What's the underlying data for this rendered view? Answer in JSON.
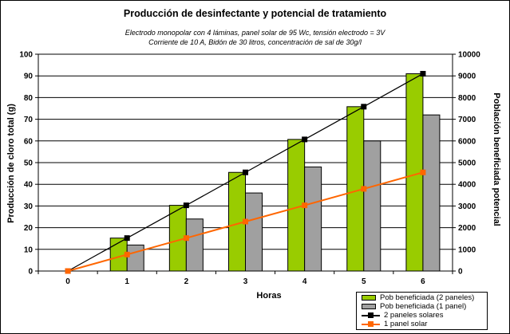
{
  "chart_data": {
    "type": "combo-bar-line",
    "title": "Producción de desinfectante y potencial de tratamiento",
    "subtitle_line1": "Electrodo monopolar con 4 láminas, panel solar de 95 Wc, tensión electrodo = 3V",
    "subtitle_line2": "Corriente de 10 A, Bidón de 30 litros, concentración de sal de 30g/l",
    "x_axis": {
      "label": "Horas",
      "categories": [
        "0",
        "1",
        "2",
        "3",
        "4",
        "5",
        "6"
      ]
    },
    "left_axis": {
      "label": "Producción de cloro total (g)",
      "min": 0,
      "max": 100,
      "step": 10
    },
    "right_axis": {
      "label": "Población beneficiada potencial",
      "min": 0,
      "max": 10000,
      "step": 1000
    },
    "grid": "horizontal",
    "legend_position": "bottom-right",
    "series": [
      {
        "name": "Pob beneficiada (2 paneles)",
        "type": "bar",
        "axis": "right",
        "color": "#99CC00",
        "values": [
          0,
          1520,
          3030,
          4550,
          6070,
          7580,
          9100
        ]
      },
      {
        "name": "Pob beneficiada (1 panel)",
        "type": "bar",
        "axis": "right",
        "color": "#A0A0A0",
        "values": [
          0,
          1200,
          2400,
          3600,
          4800,
          6000,
          7200
        ]
      },
      {
        "name": "2 paneles solares",
        "type": "line",
        "axis": "left",
        "color": "#000000",
        "marker": "square",
        "values": [
          0,
          15.2,
          30.3,
          45.5,
          60.7,
          75.8,
          91
        ]
      },
      {
        "name": "1 panel solar",
        "type": "line",
        "axis": "left",
        "color": "#FF6600",
        "marker": "square",
        "values": [
          0,
          7.6,
          15.2,
          22.8,
          30.3,
          37.9,
          45.5
        ]
      }
    ]
  }
}
